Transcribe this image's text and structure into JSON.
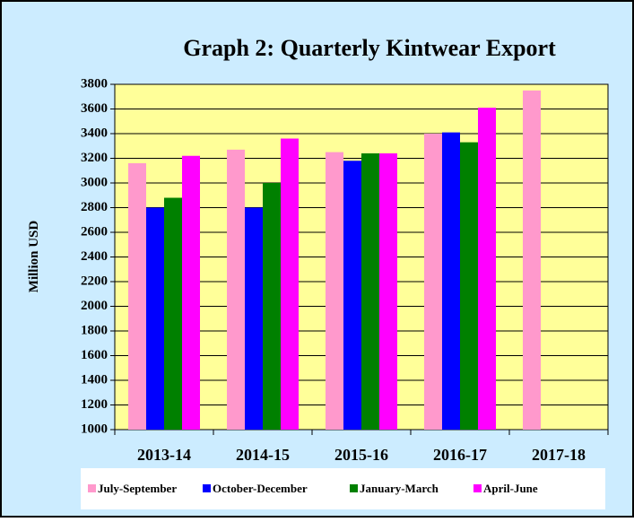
{
  "chart_data": {
    "type": "bar",
    "title": "Graph 2: Quarterly Kintwear Export",
    "y_label": "Million USD",
    "categories": [
      "2013-14",
      "2014-15",
      "2015-16",
      "2016-17",
      "2017-18"
    ],
    "series": [
      {
        "name": "July-September",
        "color": "#ff99cc",
        "values": [
          3160,
          3270,
          3250,
          3400,
          3750
        ]
      },
      {
        "name": "October-December",
        "color": "#0000ff",
        "values": [
          2800,
          2800,
          3180,
          3410,
          null
        ]
      },
      {
        "name": "January-March",
        "color": "#008000",
        "values": [
          2880,
          3000,
          3240,
          3330,
          null
        ]
      },
      {
        "name": "April-June",
        "color": "#ff00ff",
        "values": [
          3220,
          3360,
          3240,
          3610,
          null
        ]
      }
    ],
    "ylim": [
      1000,
      3800
    ],
    "yticks": [
      1000,
      1200,
      1400,
      1600,
      1800,
      2000,
      2200,
      2400,
      2600,
      2800,
      3000,
      3200,
      3400,
      3600,
      3800
    ],
    "grid": true
  }
}
